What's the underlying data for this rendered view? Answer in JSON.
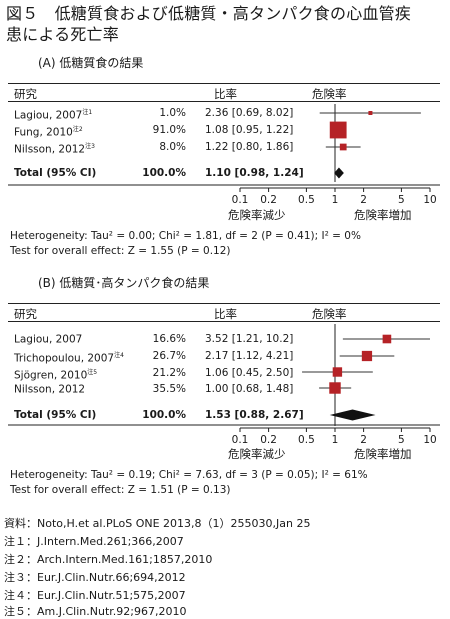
{
  "figure": {
    "title_line1": "図５　低糖質食および低糖質・高タンパク食の心血管疾",
    "title_line2": "患による死亡率"
  },
  "headers": {
    "study": "研究",
    "ratio": "比率",
    "risk": "危険率"
  },
  "axis": {
    "ticks": [
      "0.1",
      "0.2",
      "0.5",
      "1",
      "2",
      "5",
      "10"
    ],
    "decrease_label": "危険率減少",
    "increase_label": "危険率増加"
  },
  "colors": {
    "marker": "#b52226",
    "ci_line": "#333333",
    "diamond": "#111111"
  },
  "chart_data": [
    {
      "type": "forest",
      "title": "(A) 低糖質食の結果",
      "scale": "log",
      "xlim": [
        0.1,
        10
      ],
      "studies": [
        {
          "name": "Lagiou, 2007",
          "note": "注1",
          "weight": "1.0%",
          "ratio": 2.36,
          "ci_low": 0.69,
          "ci_high": 8.02,
          "ci_text": "2.36 [0.69, 8.02]"
        },
        {
          "name": "Fung, 2010",
          "note": "注2",
          "weight": "91.0%",
          "ratio": 1.08,
          "ci_low": 0.95,
          "ci_high": 1.22,
          "ci_text": "1.08 [0.95, 1.22]"
        },
        {
          "name": "Nilsson, 2012",
          "note": "注3",
          "weight": "8.0%",
          "ratio": 1.22,
          "ci_low": 0.8,
          "ci_high": 1.86,
          "ci_text": "1.22 [0.80, 1.86]"
        }
      ],
      "total": {
        "name": "Total (95% CI)",
        "weight": "100.0%",
        "ratio": 1.1,
        "ci_low": 0.98,
        "ci_high": 1.24,
        "ci_text": "1.10 [0.98, 1.24]"
      },
      "heterogeneity": "Heterogeneity: Tau² = 0.00; Chi² = 1.81, df = 2 (P = 0.41); I² = 0%",
      "overall_effect": "Test for overall effect: Z = 1.55 (P = 0.12)"
    },
    {
      "type": "forest",
      "title": "(B) 低糖質･高タンパク食の結果",
      "scale": "log",
      "xlim": [
        0.1,
        10
      ],
      "studies": [
        {
          "name": "Lagiou, 2007",
          "note": "",
          "weight": "16.6%",
          "ratio": 3.52,
          "ci_low": 1.21,
          "ci_high": 10.2,
          "ci_text": "3.52 [1.21, 10.2]"
        },
        {
          "name": "Trichopoulou, 2007",
          "note": "注4",
          "weight": "26.7%",
          "ratio": 2.17,
          "ci_low": 1.12,
          "ci_high": 4.21,
          "ci_text": "2.17 [1.12, 4.21]"
        },
        {
          "name": "Sjögren, 2010",
          "note": "注5",
          "weight": "21.2%",
          "ratio": 1.06,
          "ci_low": 0.45,
          "ci_high": 2.5,
          "ci_text": "1.06 [0.45, 2.50]"
        },
        {
          "name": "Nilsson, 2012",
          "note": "",
          "weight": "35.5%",
          "ratio": 1.0,
          "ci_low": 0.68,
          "ci_high": 1.48,
          "ci_text": "1.00 [0.68, 1.48]"
        }
      ],
      "total": {
        "name": "Total (95% CI)",
        "weight": "100.0%",
        "ratio": 1.53,
        "ci_low": 0.88,
        "ci_high": 2.67,
        "ci_text": "1.53 [0.88, 2.67]"
      },
      "heterogeneity": "Heterogeneity: Tau² = 0.19; Chi² = 7.63, df = 3 (P = 0.05); I² = 61%",
      "overall_effect": "Test for overall effect: Z = 1.51 (P = 0.13)"
    }
  ],
  "footnotes": [
    "資料：Noto,H.et al.PLoS ONE 2013,8（1）255030,Jan 25",
    "注１：J.Intern.Med.261;366,2007",
    "注２：Arch.Intern.Med.161;1857,2010",
    "注３：Eur.J.Clin.Nutr.66;694,2012",
    "注４：Eur.J.Clin.Nutr.51;575,2007",
    "注５：Am.J.Clin.Nutr.92;967,2010"
  ]
}
